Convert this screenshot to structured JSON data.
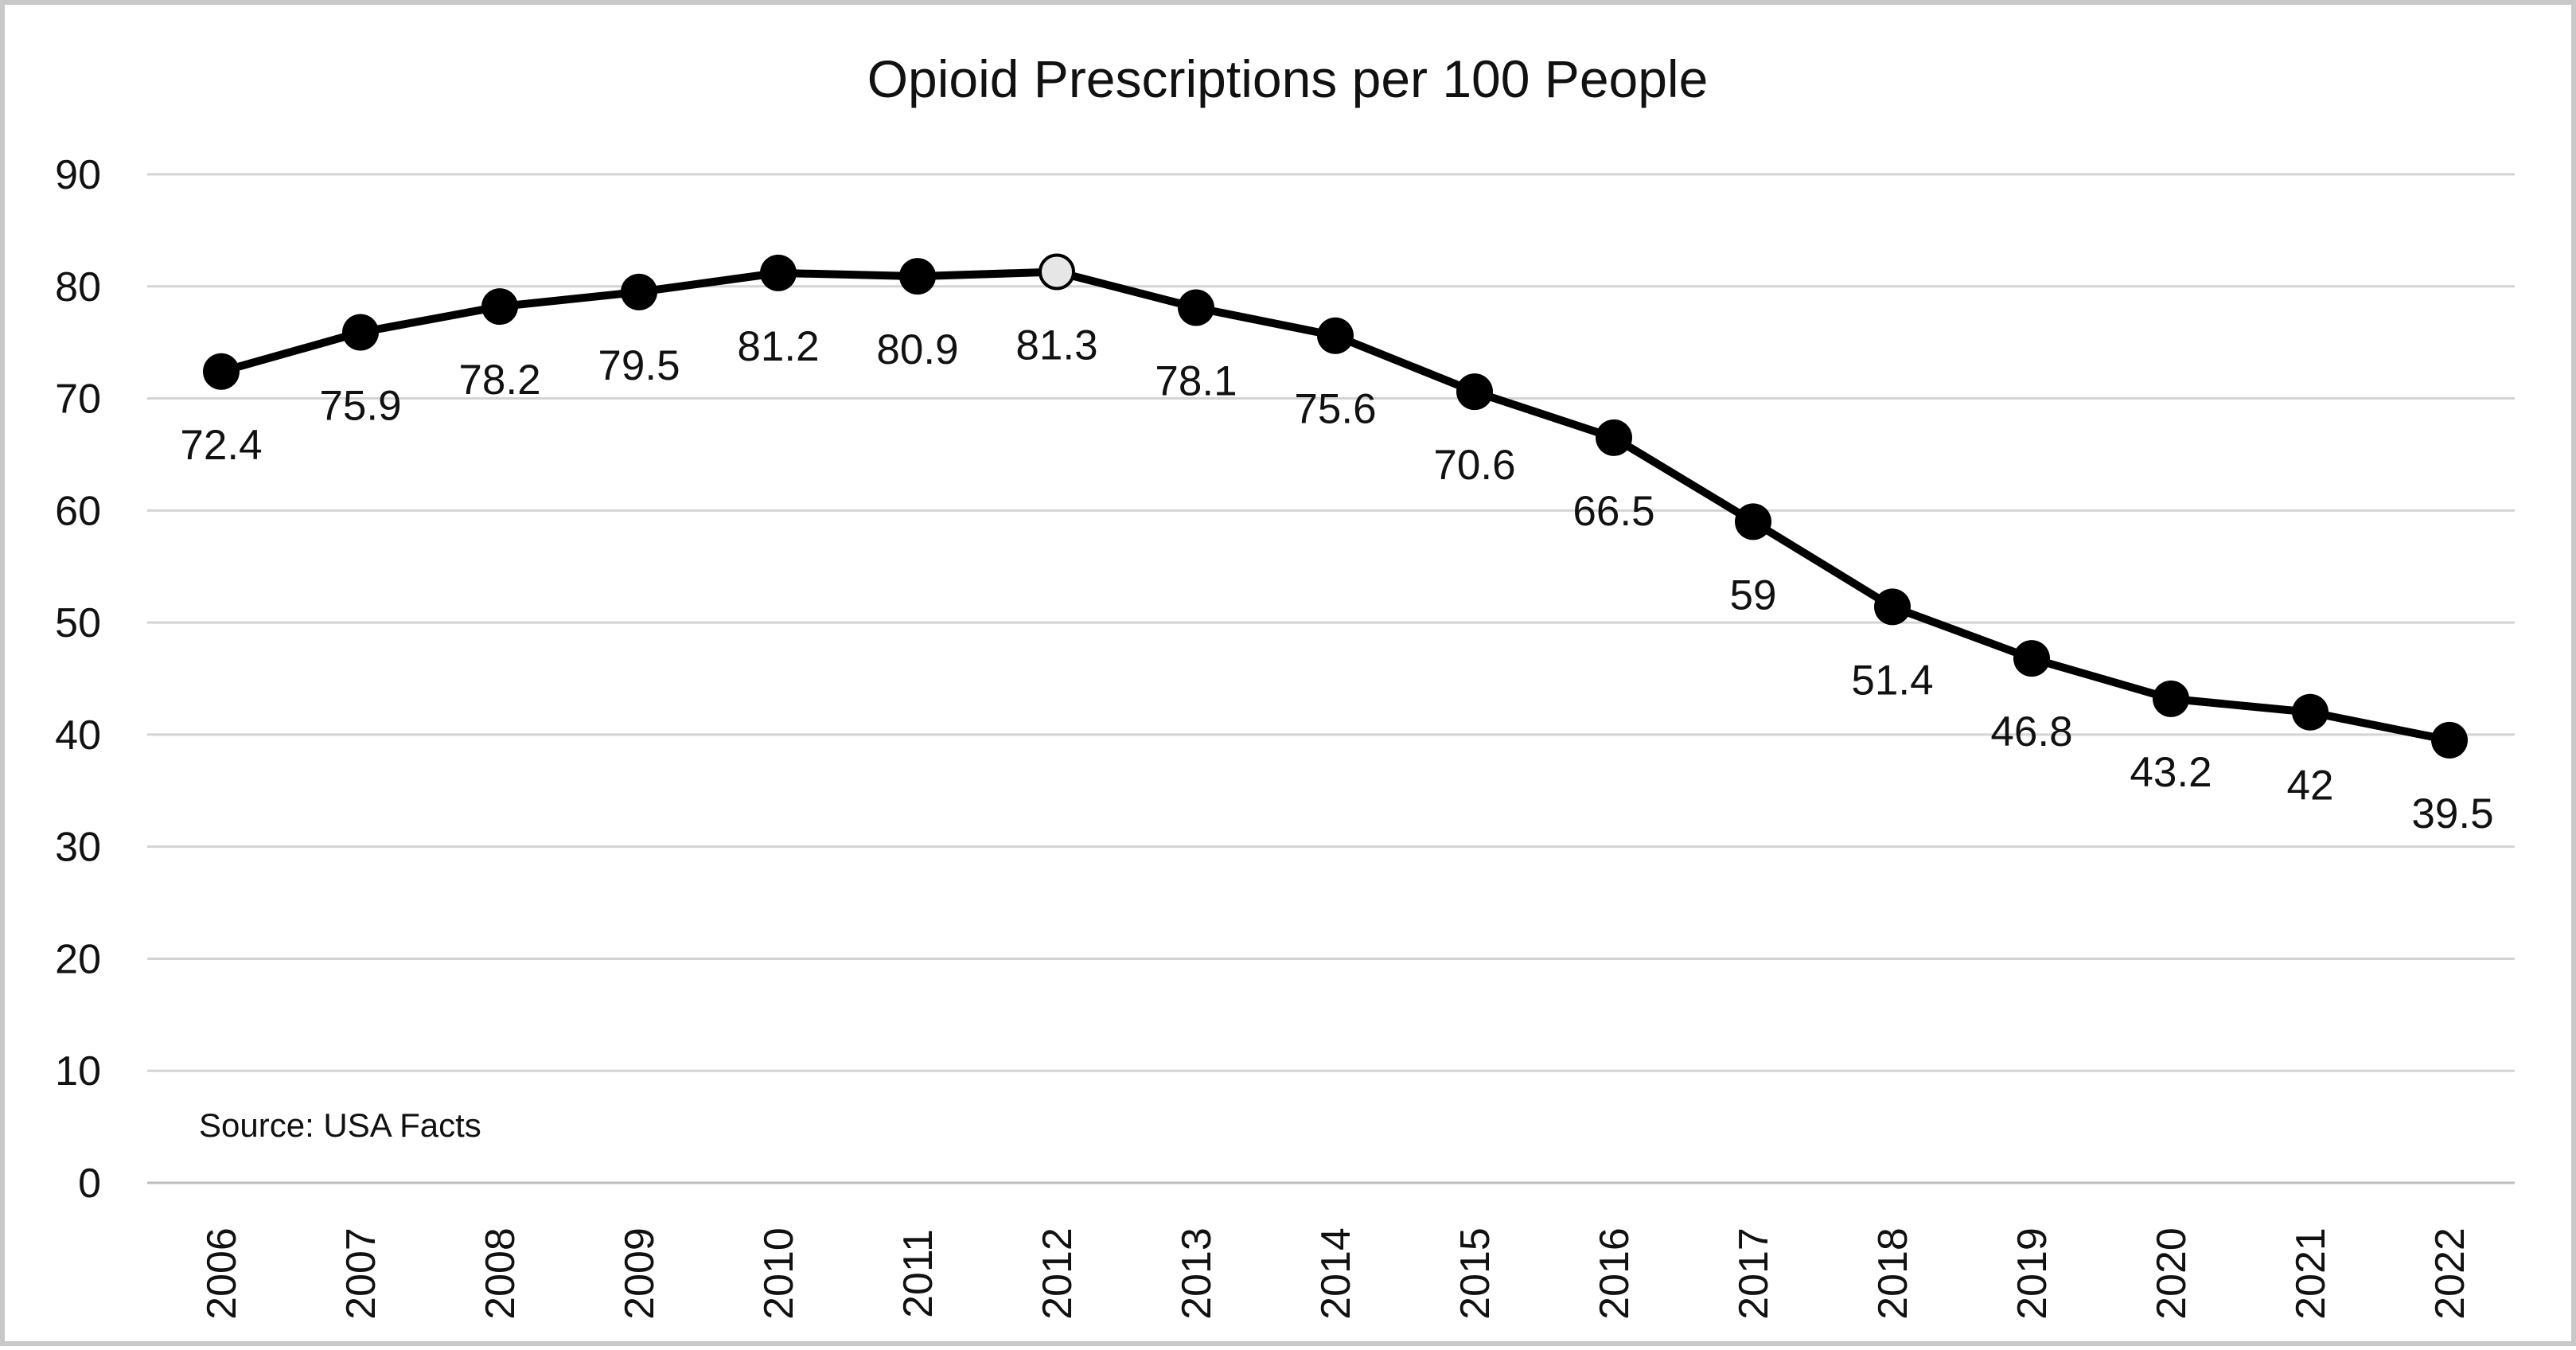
{
  "chart_data": {
    "type": "line",
    "title": "Opioid Prescriptions per 100 People",
    "xlabel": "",
    "ylabel": "",
    "categories": [
      "2006",
      "2007",
      "2008",
      "2009",
      "2010",
      "2011",
      "2012",
      "2013",
      "2014",
      "2015",
      "2016",
      "2017",
      "2018",
      "2019",
      "2020",
      "2021",
      "2022"
    ],
    "series": [
      {
        "values": [
          72.4,
          75.9,
          78.2,
          79.5,
          81.2,
          80.9,
          81.3,
          78.1,
          75.6,
          70.6,
          66.5,
          59,
          51.4,
          46.8,
          43.2,
          42,
          39.5
        ],
        "labels": [
          "72.4",
          "75.9",
          "78.2",
          "79.5",
          "81.2",
          "80.9",
          "81.3",
          "78.1",
          "75.6",
          "70.6",
          "66.5",
          "59",
          "51.4",
          "46.8",
          "43.2",
          "42",
          "39.5"
        ],
        "color": "#000000",
        "highlight_index": 6,
        "highlight_color": "#e6e6e6"
      }
    ],
    "ylim": [
      0,
      90
    ],
    "yticks": [
      "0",
      "10",
      "20",
      "30",
      "40",
      "50",
      "60",
      "70",
      "80",
      "90"
    ],
    "grid": true,
    "legend": "none",
    "annotation": "Source: USA Facts"
  }
}
